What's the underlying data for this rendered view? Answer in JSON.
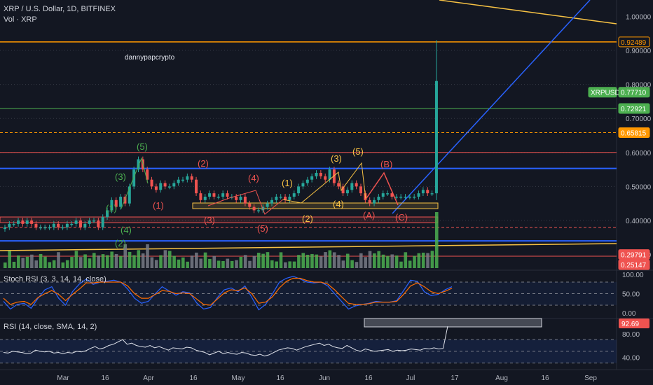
{
  "header": {
    "title": "XRP / U.S. Dollar, 1D, BITFINEX",
    "volume_label": "Vol · XRP",
    "stoch_label": "Stoch RSI (3, 3, 14, 14, close)",
    "rsi_label": "RSI (14, close, SMA, 14, 2)",
    "watermark": "dannypapcrypto"
  },
  "colors": {
    "background": "#131722",
    "up": "#26a69a",
    "green_body": "#4caf50",
    "down": "#ef5350",
    "orange": "#ff9800",
    "blue": "#2962ff",
    "yellow": "#f7c244",
    "tag_blue": "#2962ff"
  },
  "chart_data": [
    {
      "type": "candlestick",
      "title": "XRP / U.S. Dollar, 1D, BITFINEX",
      "ylim": [
        0.22,
        1.02
      ],
      "yticks": [
        "1.00000",
        "0.90000",
        "0.80000",
        "0.70000",
        "0.60000",
        "0.50000",
        "0.40000",
        "0.30000"
      ],
      "x_ticks": [
        "Mar",
        "16",
        "Apr",
        "16",
        "May",
        "16",
        "Jun",
        "16",
        "Jul",
        "17",
        "Aug",
        "16",
        "Sep"
      ],
      "price_tags": [
        {
          "text": "0.92489",
          "value": 0.92489,
          "style": "orange-outline"
        },
        {
          "text": "XRPUSD",
          "value": 0.7771,
          "style": "green-fill"
        },
        {
          "text": "0.77710",
          "value": 0.7771,
          "style": "green-fill"
        },
        {
          "text": "0.72921",
          "value": 0.72921,
          "style": "green-fill"
        },
        {
          "text": "0.65815",
          "value": 0.65815,
          "style": "orange-fill"
        },
        {
          "text": "0.29791",
          "value": 0.29791,
          "style": "red-fill"
        },
        {
          "text": "0.25147",
          "value": 0.25147,
          "style": "red-fill"
        }
      ],
      "series_approx": [
        0.38,
        0.39,
        0.39,
        0.4,
        0.39,
        0.4,
        0.39,
        0.38,
        0.38,
        0.38,
        0.38,
        0.39,
        0.38,
        0.38,
        0.39,
        0.39,
        0.4,
        0.38,
        0.39,
        0.4,
        0.4,
        0.38,
        0.41,
        0.43,
        0.46,
        0.44,
        0.47,
        0.45,
        0.5,
        0.55,
        0.58,
        0.55,
        0.52,
        0.5,
        0.49,
        0.51,
        0.5,
        0.5,
        0.51,
        0.52,
        0.52,
        0.53,
        0.52,
        0.48,
        0.46,
        0.47,
        0.48,
        0.47,
        0.47,
        0.48,
        0.47,
        0.47,
        0.46,
        0.47,
        0.45,
        0.44,
        0.43,
        0.43,
        0.44,
        0.45,
        0.46,
        0.47,
        0.47,
        0.46,
        0.47,
        0.48,
        0.5,
        0.51,
        0.52,
        0.53,
        0.54,
        0.53,
        0.52,
        0.55,
        0.51,
        0.5,
        0.48,
        0.49,
        0.51,
        0.5,
        0.48,
        0.46,
        0.45,
        0.46,
        0.47,
        0.48,
        0.48,
        0.47,
        0.47,
        0.47,
        0.47,
        0.47,
        0.47,
        0.48,
        0.49,
        0.48,
        0.48,
        0.81
      ]
    },
    {
      "type": "bar",
      "title": "Vol · XRP"
    },
    {
      "type": "line",
      "title": "Stoch RSI (3, 3, 14, 14, close)",
      "yticks": [
        "100.00",
        "50.00",
        "0.00"
      ],
      "ylim": [
        0,
        100
      ],
      "series": [
        {
          "values": [
            30,
            10,
            22,
            25,
            12,
            38,
            60,
            68,
            38,
            20,
            55,
            75,
            88,
            74,
            80,
            82,
            85,
            80,
            62,
            38,
            25,
            30,
            50,
            68,
            57,
            46,
            55,
            52,
            26,
            10,
            14,
            40,
            60,
            65,
            55,
            70,
            40,
            8,
            22,
            50,
            80,
            90,
            95,
            88,
            80,
            78,
            80,
            70,
            50,
            30,
            10,
            18,
            22,
            25,
            30,
            28,
            28,
            32,
            58,
            85,
            82,
            55,
            45,
            48,
            60,
            68
          ]
        },
        {
          "values": [
            38,
            22,
            28,
            30,
            22,
            40,
            50,
            58,
            48,
            32,
            48,
            62,
            78,
            78,
            80,
            80,
            80,
            80,
            70,
            50,
            38,
            38,
            48,
            58,
            56,
            50,
            52,
            50,
            36,
            22,
            20,
            36,
            52,
            60,
            58,
            65,
            50,
            25,
            28,
            42,
            65,
            82,
            90,
            90,
            84,
            80,
            80,
            75,
            60,
            42,
            25,
            22,
            22,
            24,
            28,
            28,
            28,
            30,
            48,
            70,
            78,
            68,
            55,
            50,
            56,
            64
          ]
        }
      ]
    },
    {
      "type": "line",
      "title": "RSI (14, close, SMA, 14, 2)",
      "yticks": [
        "92.69",
        "80.00",
        "40.00"
      ],
      "ylim": [
        20,
        100
      ],
      "value_tag": "92.69",
      "series": [
        {
          "values": [
            48,
            47,
            50,
            49,
            48,
            46,
            47,
            52,
            50,
            49,
            50,
            47,
            48,
            46,
            48,
            47,
            50,
            49,
            51,
            55,
            58,
            54,
            56,
            60,
            62,
            66,
            70,
            62,
            64,
            60,
            58,
            57,
            60,
            56,
            58,
            55,
            52,
            56,
            55,
            54,
            57,
            56,
            52,
            50,
            48,
            44,
            47,
            50,
            46,
            48,
            46,
            45,
            48,
            47,
            44,
            43,
            45,
            42,
            44,
            48,
            52,
            54,
            56,
            55,
            52,
            55,
            58,
            60,
            62,
            64,
            60,
            62,
            58,
            56,
            55,
            60,
            56,
            52,
            50,
            54,
            52,
            50,
            51,
            52,
            53,
            50,
            52,
            51,
            52,
            54,
            53,
            52,
            55,
            54,
            56,
            54,
            55,
            92.69
          ]
        }
      ]
    }
  ],
  "wave_labels": [
    {
      "text": "(5)",
      "color": "green",
      "at": "top"
    },
    {
      "text": "(3)",
      "color": "green",
      "at": "mid"
    },
    {
      "text": "(1)",
      "color": "green",
      "at": "low"
    },
    {
      "text": "(4)",
      "color": "green",
      "at": "bottom"
    },
    {
      "text": "(2)",
      "color": "green",
      "at": "bottom2"
    },
    {
      "text": "(1)",
      "color": "red",
      "at": "a"
    },
    {
      "text": "(2)",
      "color": "red",
      "at": "b"
    },
    {
      "text": "(3)",
      "color": "red",
      "at": "c"
    },
    {
      "text": "(4)",
      "color": "red",
      "at": "d"
    },
    {
      "text": "(5)",
      "color": "red",
      "at": "e"
    },
    {
      "text": "(1)",
      "color": "yellow",
      "at": "f"
    },
    {
      "text": "(2)",
      "color": "yellow",
      "at": "g"
    },
    {
      "text": "(3)",
      "color": "yellow",
      "at": "h"
    },
    {
      "text": "(4)",
      "color": "yellow",
      "at": "i"
    },
    {
      "text": "(5)",
      "color": "yellow",
      "at": "j"
    },
    {
      "text": "(A)",
      "color": "red",
      "at": "k"
    },
    {
      "text": "(B)",
      "color": "red",
      "at": "l"
    },
    {
      "text": "(C)",
      "color": "red",
      "at": "m"
    }
  ]
}
